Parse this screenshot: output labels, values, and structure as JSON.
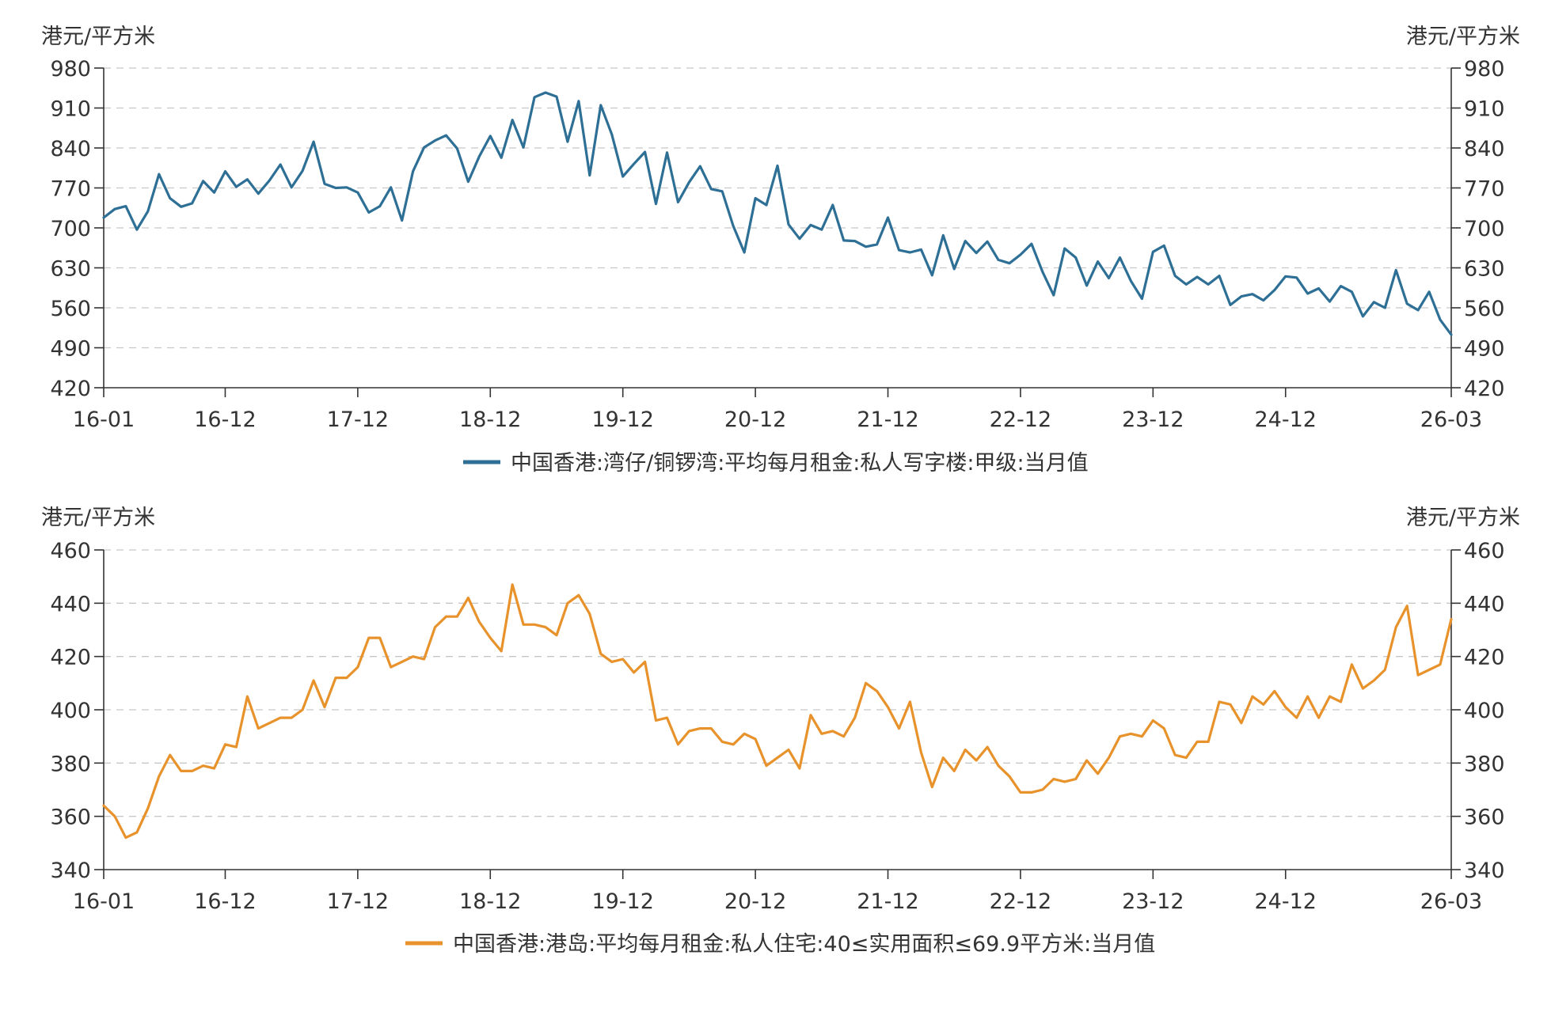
{
  "chart_data": [
    {
      "type": "line",
      "y_unit_left": "港元/平方米",
      "y_unit_right": "港元/平方米",
      "ylim": [
        420,
        980
      ],
      "yticks": [
        "420",
        "490",
        "560",
        "630",
        "700",
        "770",
        "840",
        "910",
        "980"
      ],
      "xticks": [
        "16-01",
        "16-12",
        "17-12",
        "18-12",
        "19-12",
        "20-12",
        "21-12",
        "22-12",
        "23-12",
        "24-12",
        "26-03"
      ],
      "grid": true,
      "legend_position": "bottom",
      "series": [
        {
          "name": "中国香港:湾仔/铜锣湾:平均每月租金:私人写字楼:甲级:当月值",
          "color": "#2e6f96",
          "values": [
            718,
            733,
            738,
            697,
            729,
            794,
            752,
            737,
            743,
            782,
            762,
            799,
            772,
            785,
            760,
            783,
            811,
            771,
            800,
            851,
            777,
            770,
            771,
            762,
            727,
            738,
            771,
            713,
            799,
            841,
            853,
            862,
            839,
            781,
            825,
            861,
            823,
            889,
            841,
            929,
            937,
            930,
            851,
            922,
            792,
            915,
            864,
            790,
            812,
            833,
            742,
            832,
            745,
            780,
            808,
            768,
            764,
            703,
            657,
            752,
            740,
            809,
            706,
            681,
            705,
            697,
            740,
            678,
            677,
            667,
            671,
            718,
            661,
            657,
            662,
            617,
            687,
            628,
            677,
            656,
            676,
            644,
            638,
            653,
            672,
            623,
            582,
            664,
            648,
            599,
            641,
            612,
            648,
            607,
            576,
            658,
            669,
            616,
            601,
            614,
            601,
            616,
            565,
            580,
            584,
            573,
            591,
            615,
            613,
            585,
            594,
            571,
            598,
            588,
            545,
            570,
            560,
            626,
            567,
            556,
            588,
            539,
            513
          ]
        }
      ]
    },
    {
      "type": "line",
      "y_unit_left": "港元/平方米",
      "y_unit_right": "港元/平方米",
      "ylim": [
        340,
        460
      ],
      "yticks": [
        "340",
        "360",
        "380",
        "400",
        "420",
        "440",
        "460"
      ],
      "xticks": [
        "16-01",
        "16-12",
        "17-12",
        "18-12",
        "19-12",
        "20-12",
        "21-12",
        "22-12",
        "23-12",
        "24-12",
        "26-03"
      ],
      "grid": true,
      "legend_position": "bottom",
      "series": [
        {
          "name": "中国香港:港岛:平均每月租金:私人住宅:40≤实用面积≤69.9平方米:当月值",
          "color": "#e8922c",
          "values": [
            364,
            360,
            352,
            354,
            363,
            375,
            383,
            377,
            377,
            379,
            378,
            387,
            386,
            405,
            393,
            395,
            397,
            397,
            400,
            411,
            401,
            412,
            412,
            416,
            427,
            427,
            416,
            418,
            420,
            419,
            431,
            435,
            435,
            442,
            433,
            427,
            422,
            447,
            432,
            432,
            431,
            428,
            440,
            443,
            436,
            421,
            418,
            419,
            414,
            418,
            396,
            397,
            387,
            392,
            393,
            393,
            388,
            387,
            391,
            389,
            379,
            382,
            385,
            378,
            398,
            391,
            392,
            390,
            397,
            410,
            407,
            401,
            393,
            403,
            384,
            371,
            382,
            377,
            385,
            381,
            386,
            379,
            375,
            369,
            369,
            370,
            374,
            373,
            374,
            381,
            376,
            382,
            390,
            391,
            390,
            396,
            393,
            383,
            382,
            388,
            388,
            403,
            402,
            395,
            405,
            402,
            407,
            401,
            397,
            405,
            397,
            405,
            403,
            417,
            408,
            411,
            415,
            431,
            439,
            413,
            415,
            417,
            434
          ]
        }
      ]
    }
  ]
}
